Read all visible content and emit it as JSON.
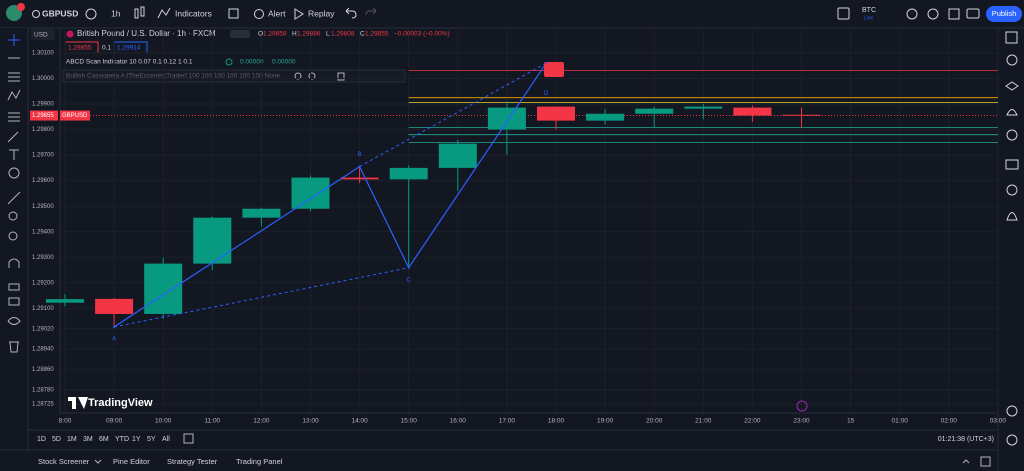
{
  "toolbar": {
    "symbol": "GBPUSD",
    "interval": "1h",
    "indicators": "Indicators",
    "alert": "Alert",
    "replay": "Replay",
    "account": "BTC",
    "account_status": "Live",
    "publish": "Publish"
  },
  "legend": {
    "currency": "USD",
    "instrument": "British Pound / U.S. Dollar · 1h · FXCM",
    "ohlc": [
      {
        "key": "O",
        "value": "1.29858"
      },
      {
        "key": "H",
        "value": "1.29886"
      },
      {
        "key": "L",
        "value": "1.29808"
      },
      {
        "key": "C",
        "value": "1.29855"
      }
    ],
    "change": "−0.00003 (−0.00%)",
    "bid": "1.29855",
    "spread": "0.1",
    "ask": "1.29914",
    "indicator_1": "ABCD Scan Indicator 10 0.07 0.1 0.12 1 0.1",
    "indicator_1_values": [
      "0.00000",
      "0.00000"
    ],
    "indicator_2": "Bullish Cassiopeia A [TheEccentricTrader] 100 100 100 100 100 100 None"
  },
  "chart_data": {
    "type": "candlestick",
    "categories": [
      "8:00",
      "09:00",
      "10:00",
      "11:00",
      "12:00",
      "13:00",
      "14:00",
      "15:00",
      "16:00",
      "17:00",
      "18:00",
      "19:00",
      "20:00",
      "21:00",
      "22:00",
      "23:00",
      "15",
      "01:00",
      "02:00",
      "03:00"
    ],
    "series": [
      {
        "name": "Open",
        "values": [
          1.29122,
          1.29137,
          1.29078,
          1.29275,
          1.29455,
          1.2949,
          1.29612,
          1.29605,
          1.2965,
          1.298,
          1.2989,
          1.29835,
          1.29862,
          1.29882,
          1.29886,
          1.29858,
          null,
          null,
          null,
          null
        ]
      },
      {
        "name": "High",
        "values": [
          1.29155,
          1.2914,
          1.29298,
          1.2946,
          1.29495,
          1.2962,
          1.29655,
          1.2966,
          1.2976,
          1.2991,
          1.2989,
          1.2988,
          1.2989,
          1.299,
          1.29895,
          1.29886,
          null,
          null,
          null,
          null
        ]
      },
      {
        "name": "Low",
        "values": [
          1.29108,
          1.29027,
          1.2906,
          1.2925,
          1.2942,
          1.2948,
          1.2959,
          1.29259,
          1.2956,
          1.297,
          1.298,
          1.2982,
          1.2981,
          1.2984,
          1.2983,
          1.29808,
          null,
          null,
          null,
          null
        ]
      },
      {
        "name": "Close",
        "values": [
          1.29136,
          1.29078,
          1.29275,
          1.29455,
          1.2949,
          1.29612,
          1.29605,
          1.2965,
          1.29745,
          1.29886,
          1.29835,
          1.29862,
          1.29882,
          1.2989,
          1.29855,
          1.29855,
          null,
          null,
          null,
          null
        ]
      }
    ],
    "up_color": "#089981",
    "down_color": "#f23645",
    "ylim": [
      1.2869,
      1.3019
    ],
    "yticks": [
      {
        "value": 1.301,
        "label": "1.30100"
      },
      {
        "value": 1.3,
        "label": "1.30000"
      },
      {
        "value": 1.299,
        "label": "1.29900"
      },
      {
        "value": 1.298,
        "label": "1.29800"
      },
      {
        "value": 1.297,
        "label": "1.29700"
      },
      {
        "value": 1.296,
        "label": "1.29600"
      },
      {
        "value": 1.295,
        "label": "1.29500"
      },
      {
        "value": 1.294,
        "label": "1.29400"
      },
      {
        "value": 1.293,
        "label": "1.29300"
      },
      {
        "value": 1.292,
        "label": "1.29200"
      },
      {
        "value": 1.291,
        "label": "1.29100"
      },
      {
        "value": 1.2902,
        "label": "1.29020"
      },
      {
        "value": 1.2894,
        "label": "1.28940"
      },
      {
        "value": 1.2886,
        "label": "1.28860"
      },
      {
        "value": 1.2878,
        "label": "1.28780"
      },
      {
        "value": 1.28725,
        "label": "1.28725"
      }
    ],
    "grid": true,
    "last_price": {
      "value": 1.29855,
      "label": "1.29855"
    },
    "last_price_symbol": "GBPUSD",
    "levels": [
      {
        "value": 1.30031,
        "color": "#f23645"
      },
      {
        "value": 1.29925,
        "color": "#f7a600"
      },
      {
        "value": 1.29906,
        "color": "#e7d334"
      },
      {
        "value": 1.29808,
        "color": "#22ab94"
      },
      {
        "value": 1.2978,
        "color": "#22ab94"
      },
      {
        "value": 1.29749,
        "color": "#22ab94"
      }
    ],
    "pattern_points": [
      {
        "label": "A",
        "value": 1.29027
      },
      {
        "label": "B",
        "value": 1.29655
      },
      {
        "label": "C",
        "value": 1.29259
      },
      {
        "label": "D",
        "value": 1.3006
      }
    ],
    "watermark": "TradingView"
  },
  "range_bar": {
    "ranges": [
      "1D",
      "5D",
      "1M",
      "3M",
      "6M",
      "YTD",
      "1Y",
      "5Y",
      "All"
    ],
    "clock": "01:21:38 (UTC+3)"
  },
  "tabs": [
    "Stock Screener",
    "Pine Editor",
    "Strategy Tester",
    "Trading Panel"
  ]
}
